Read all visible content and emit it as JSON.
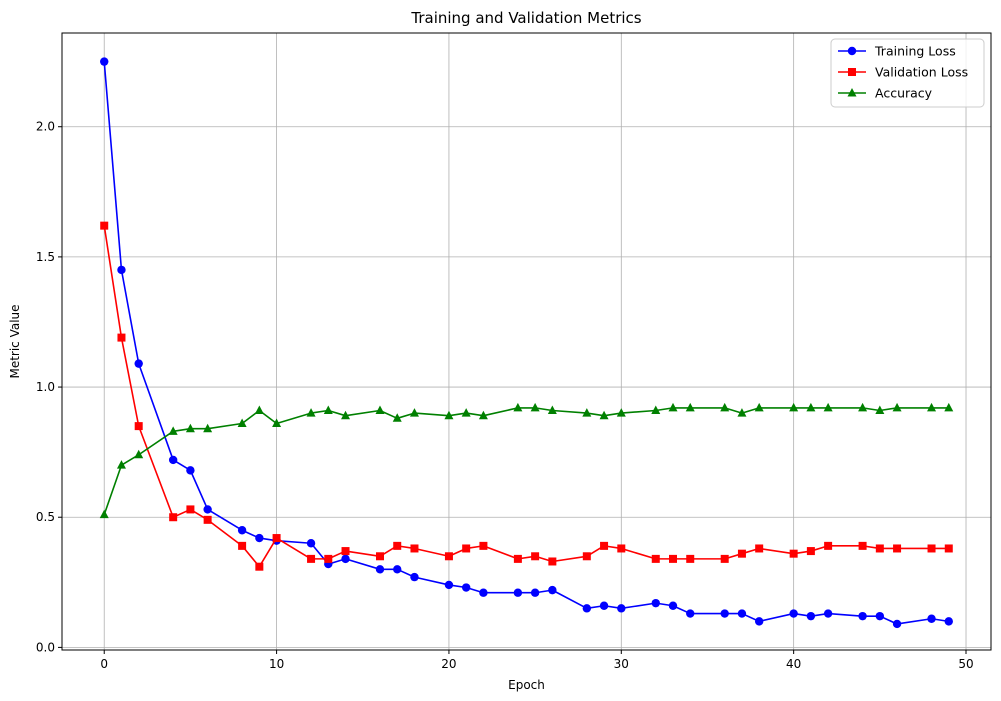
{
  "chart_data": {
    "type": "line",
    "title": "Training and Validation Metrics",
    "xlabel": "Epoch",
    "ylabel": "Metric Value",
    "xlim": [
      -2.45,
      51.45
    ],
    "ylim": [
      -0.01,
      2.36
    ],
    "xticks": [
      "0",
      "10",
      "20",
      "30",
      "40",
      "50"
    ],
    "yticks": [
      "0.0",
      "0.5",
      "1.0",
      "1.5",
      "2.0"
    ],
    "grid": true,
    "legend_position": "top-right",
    "series": [
      {
        "name": "Training Loss",
        "color": "#0000ff",
        "marker": "circle",
        "x": [
          0,
          1,
          2,
          4,
          5,
          6,
          8,
          9,
          10,
          12,
          13,
          14,
          16,
          17,
          18,
          20,
          21,
          22,
          24,
          25,
          26,
          28,
          29,
          30,
          32,
          33,
          34,
          36,
          37,
          38,
          40,
          41,
          42,
          44,
          45,
          46,
          48,
          49
        ],
        "values": [
          2.25,
          1.45,
          1.09,
          0.72,
          0.68,
          0.53,
          0.45,
          0.42,
          0.41,
          0.4,
          0.32,
          0.34,
          0.3,
          0.3,
          0.27,
          0.24,
          0.23,
          0.21,
          0.21,
          0.21,
          0.22,
          0.15,
          0.16,
          0.15,
          0.17,
          0.16,
          0.13,
          0.13,
          0.13,
          0.1,
          0.13,
          0.12,
          0.13,
          0.12,
          0.12,
          0.09,
          0.11,
          0.1
        ]
      },
      {
        "name": "Validation Loss",
        "color": "#ff0000",
        "marker": "square",
        "x": [
          0,
          1,
          2,
          4,
          5,
          6,
          8,
          9,
          10,
          12,
          13,
          14,
          16,
          17,
          18,
          20,
          21,
          22,
          24,
          25,
          26,
          28,
          29,
          30,
          32,
          33,
          34,
          36,
          37,
          38,
          40,
          41,
          42,
          44,
          45,
          46,
          48,
          49
        ],
        "values": [
          1.62,
          1.19,
          0.85,
          0.5,
          0.53,
          0.49,
          0.39,
          0.31,
          0.42,
          0.34,
          0.34,
          0.37,
          0.35,
          0.39,
          0.38,
          0.35,
          0.38,
          0.39,
          0.34,
          0.35,
          0.33,
          0.35,
          0.39,
          0.38,
          0.34,
          0.34,
          0.34,
          0.34,
          0.36,
          0.38,
          0.36,
          0.37,
          0.39,
          0.39,
          0.38,
          0.38,
          0.38,
          0.38
        ]
      },
      {
        "name": "Accuracy",
        "color": "#008000",
        "marker": "triangle",
        "x": [
          0,
          1,
          2,
          4,
          5,
          6,
          8,
          9,
          10,
          12,
          13,
          14,
          16,
          17,
          18,
          20,
          21,
          22,
          24,
          25,
          26,
          28,
          29,
          30,
          32,
          33,
          34,
          36,
          37,
          38,
          40,
          41,
          42,
          44,
          45,
          46,
          48,
          49
        ],
        "values": [
          0.51,
          0.7,
          0.74,
          0.83,
          0.84,
          0.84,
          0.86,
          0.91,
          0.86,
          0.9,
          0.91,
          0.89,
          0.91,
          0.88,
          0.9,
          0.89,
          0.9,
          0.89,
          0.92,
          0.92,
          0.91,
          0.9,
          0.89,
          0.9,
          0.91,
          0.92,
          0.92,
          0.92,
          0.9,
          0.92,
          0.92,
          0.92,
          0.92,
          0.92,
          0.91,
          0.92,
          0.92,
          0.92
        ]
      }
    ]
  }
}
